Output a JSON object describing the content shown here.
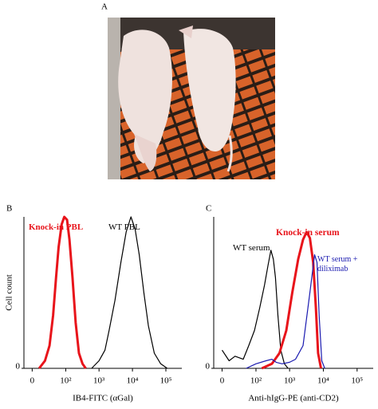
{
  "panel_labels": [
    "A",
    "B",
    "C"
  ],
  "chart_data": [
    {
      "type": "line",
      "xscale": "asinh",
      "xlabel": "IB4-FITC (αGal)",
      "ylabel": "Cell count",
      "xlim": [
        -12,
        300000
      ],
      "ylim": [
        0,
        100
      ],
      "xticks": [
        0,
        {
          "value": 100,
          "label": "10²"
        },
        {
          "value": 1000,
          "label": "10³"
        },
        {
          "value": 10000,
          "label": "10⁴"
        },
        {
          "value": 100000,
          "label": "10⁵"
        }
      ],
      "yticks": [
        0
      ],
      "series": [
        {
          "name": "Knock-in PBL",
          "color": "#e8141b",
          "x": [
            10,
            20,
            30,
            40,
            50,
            60,
            75,
            90,
            110,
            130,
            160,
            200,
            250,
            320,
            400
          ],
          "values": [
            0,
            5,
            15,
            35,
            60,
            80,
            95,
            100,
            98,
            85,
            60,
            30,
            10,
            3,
            0
          ]
        },
        {
          "name": "WT PBL",
          "color": "#000000",
          "x": [
            600,
            1000,
            1500,
            2000,
            3000,
            4500,
            6500,
            9000,
            12000,
            16000,
            22000,
            30000,
            45000,
            70000,
            110000
          ],
          "values": [
            0,
            5,
            12,
            25,
            45,
            70,
            90,
            100,
            92,
            75,
            50,
            28,
            10,
            3,
            0
          ]
        }
      ]
    },
    {
      "type": "line",
      "xscale": "asinh",
      "xlabel": "Anti-hIgG-PE  (anti-CD2)",
      "xlim": [
        -12,
        300000
      ],
      "ylim": [
        0,
        100
      ],
      "xticks": [
        0,
        {
          "value": 100,
          "label": "10²"
        },
        {
          "value": 1000,
          "label": "10³"
        },
        {
          "value": 10000,
          "label": "10⁴"
        },
        {
          "value": 100000,
          "label": "10⁵"
        }
      ],
      "yticks": [
        0
      ],
      "series": [
        {
          "name": "WT serum",
          "color": "#000000",
          "x": [
            0,
            10,
            20,
            40,
            60,
            90,
            130,
            180,
            230,
            280,
            330,
            380,
            450,
            550,
            700,
            900
          ],
          "values": [
            12,
            5,
            8,
            6,
            15,
            25,
            40,
            55,
            68,
            78,
            72,
            60,
            35,
            12,
            3,
            0
          ]
        },
        {
          "name": "Knock-in serum",
          "color": "#e8141b",
          "x": [
            150,
            300,
            500,
            800,
            1200,
            1800,
            2500,
            3200,
            4000,
            5000,
            6000,
            7000,
            8500
          ],
          "values": [
            0,
            3,
            10,
            25,
            50,
            72,
            85,
            90,
            86,
            70,
            40,
            10,
            0
          ]
        },
        {
          "name": "WT serum + diliximab",
          "color": "#1a1ab0",
          "x": [
            50,
            100,
            200,
            300,
            400,
            600,
            1000,
            1500,
            2500,
            4000,
            5500,
            6500,
            7500,
            9000,
            11000
          ],
          "values": [
            0,
            3,
            5,
            6,
            4,
            3,
            4,
            6,
            15,
            50,
            75,
            70,
            35,
            5,
            0
          ]
        }
      ]
    }
  ]
}
